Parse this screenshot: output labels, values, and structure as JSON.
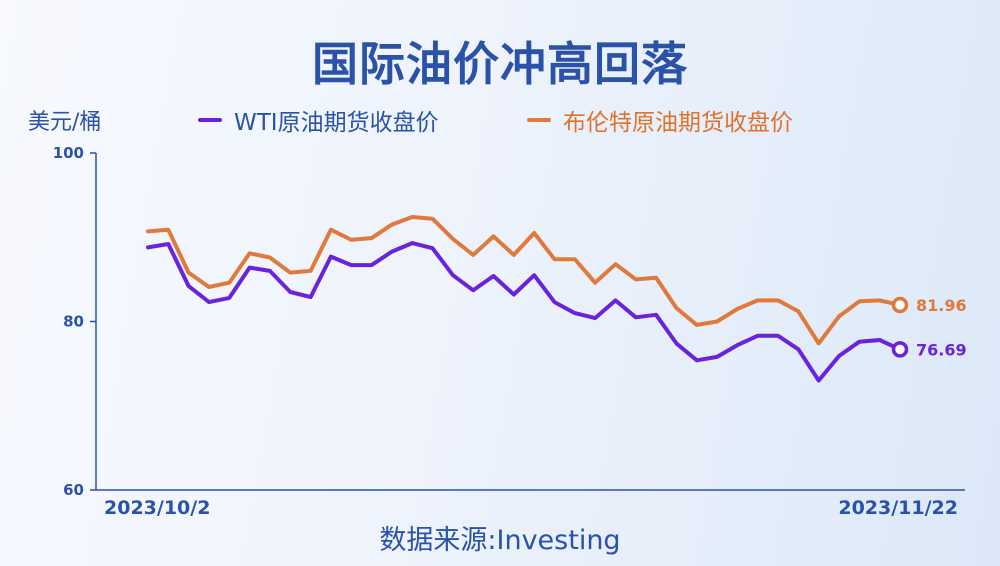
{
  "title": "国际油价冲高回落",
  "unit": "美元/桶",
  "source": "数据来源:Investing",
  "colors": {
    "wti": "#6a22dc",
    "brent": "#e07a3c",
    "text": "#2a52a8"
  },
  "chart_data": {
    "type": "line",
    "title": "国际油价冲高回落",
    "ylabel": "美元/桶",
    "xlabel": "",
    "ylim": [
      60,
      100
    ],
    "yticks": [
      100,
      80,
      60
    ],
    "x_tick_labels": [
      "2023/10/2",
      "2023/11/22"
    ],
    "x": [
      "2023/10/2",
      "2023/10/3",
      "2023/10/4",
      "2023/10/5",
      "2023/10/6",
      "2023/10/9",
      "2023/10/10",
      "2023/10/11",
      "2023/10/12",
      "2023/10/13",
      "2023/10/16",
      "2023/10/17",
      "2023/10/18",
      "2023/10/19",
      "2023/10/20",
      "2023/10/23",
      "2023/10/24",
      "2023/10/25",
      "2023/10/26",
      "2023/10/27",
      "2023/10/30",
      "2023/10/31",
      "2023/11/1",
      "2023/11/2",
      "2023/11/3",
      "2023/11/6",
      "2023/11/7",
      "2023/11/8",
      "2023/11/9",
      "2023/11/10",
      "2023/11/13",
      "2023/11/14",
      "2023/11/15",
      "2023/11/16",
      "2023/11/17",
      "2023/11/20",
      "2023/11/21",
      "2023/11/22"
    ],
    "grid": false,
    "legend": "top",
    "series": [
      {
        "name": "WTI原油期货收盘价",
        "values": [
          88.8,
          89.2,
          84.2,
          82.3,
          82.8,
          86.4,
          86.0,
          83.5,
          82.9,
          87.7,
          86.7,
          86.7,
          88.3,
          89.3,
          88.7,
          85.5,
          83.7,
          85.4,
          83.2,
          85.5,
          82.3,
          81.0,
          80.4,
          82.5,
          80.5,
          80.8,
          77.4,
          75.4,
          75.8,
          77.2,
          78.3,
          78.3,
          76.7,
          73.0,
          75.9,
          77.6,
          77.8,
          76.69
        ],
        "end_label": "76.69"
      },
      {
        "name": "布伦特原油期货收盘价",
        "values": [
          90.7,
          90.9,
          85.8,
          84.1,
          84.6,
          88.1,
          87.6,
          85.8,
          86.0,
          90.9,
          89.7,
          89.9,
          91.5,
          92.4,
          92.2,
          89.8,
          87.9,
          90.1,
          87.9,
          90.5,
          87.4,
          87.4,
          84.6,
          86.8,
          85.0,
          85.2,
          81.6,
          79.6,
          80.0,
          81.5,
          82.5,
          82.5,
          81.2,
          77.4,
          80.6,
          82.4,
          82.5,
          81.96
        ],
        "end_label": "81.96"
      }
    ]
  }
}
